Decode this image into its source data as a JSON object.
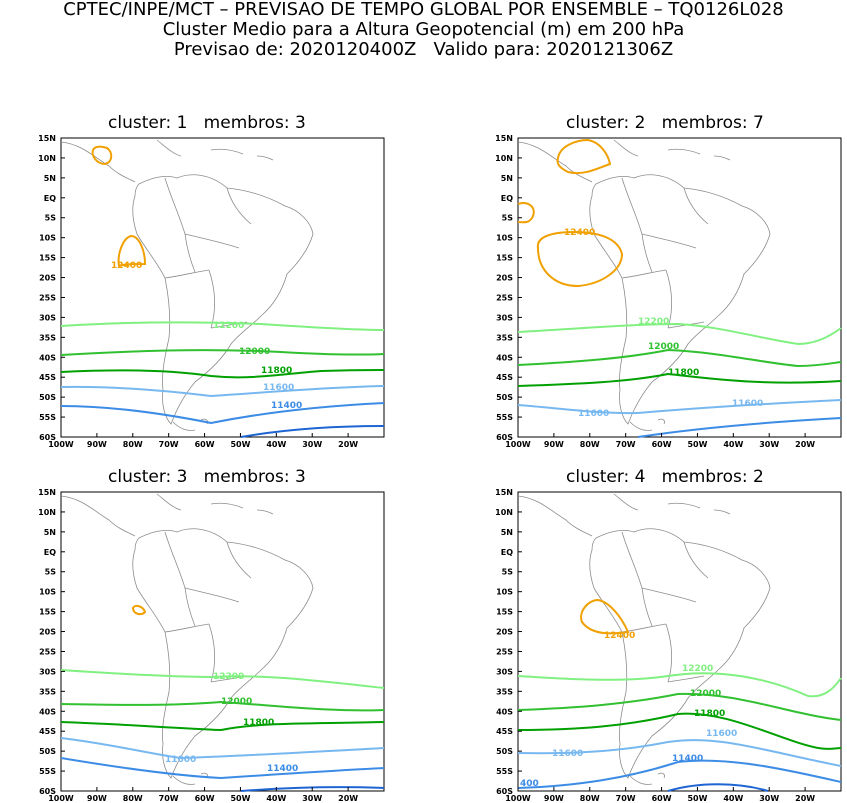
{
  "header": {
    "line1": "CPTEC/INPE/MCT – PREVISAO DE TEMPO GLOBAL POR ENSEMBLE – TQ0126L028",
    "line2": "Cluster Medio para a Altura Geopotencial (m) em 200 hPa",
    "line3": "Previsao de: 2020120400Z   Valido para: 2020121306Z"
  },
  "axes": {
    "lat_labels": [
      "15N",
      "10N",
      "5N",
      "EQ",
      "5S",
      "10S",
      "15S",
      "20S",
      "25S",
      "30S",
      "35S",
      "40S",
      "45S",
      "50S",
      "55S",
      "60S"
    ],
    "lon_labels": [
      "100W",
      "90W",
      "80W",
      "70W",
      "60W",
      "50W",
      "40W",
      "30W",
      "20W"
    ]
  },
  "colors": {
    "c12400": "#f0a000",
    "c12200": "#80f080",
    "c12000": "#30c030",
    "c11800": "#00a000",
    "c11600": "#78b8f0",
    "c11400": "#3c8ce6",
    "c11200": "#1e64d2",
    "coast": "#8c8c8c"
  },
  "panels": [
    {
      "title": "cluster: 1   membros: 3",
      "labels": {
        "l12400": "12400",
        "l12200": "12200",
        "l12000": "12000",
        "l11800": "11800",
        "l11600": "11600",
        "l11400": "11400"
      }
    },
    {
      "title": "cluster: 2   membros: 7",
      "labels": {
        "l12400": "12400",
        "l12200": "12200",
        "l12000": "12000",
        "l11800": "11800",
        "l11600a": "11600",
        "l11600b": "11600"
      }
    },
    {
      "title": "cluster: 3   membros: 3",
      "labels": {
        "l12200": "12200",
        "l12000": "12000",
        "l11800": "11800",
        "l11600": "11600",
        "l11400": "11400"
      }
    },
    {
      "title": "cluster: 4   membros: 2",
      "labels": {
        "l12400": "12400",
        "l12200": "12200",
        "l12000": "12000",
        "l11800": "11800",
        "l11600a": "11600",
        "l11600b": "11600",
        "l11400": "11400",
        "l11400b": "400"
      }
    }
  ]
}
